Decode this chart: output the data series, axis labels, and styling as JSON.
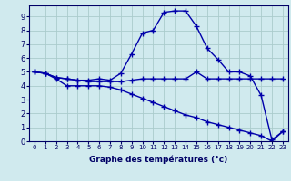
{
  "xlabel": "Graphe des températures (°c)",
  "bg_color": "#d0eaee",
  "grid_color": "#aacccc",
  "line_color": "#0000aa",
  "line_width": 1.0,
  "marker": "+",
  "marker_size": 4,
  "marker_ew": 1.0,
  "xlim": [
    -0.5,
    23.5
  ],
  "ylim": [
    0,
    9.8
  ],
  "xticks": [
    0,
    1,
    2,
    3,
    4,
    5,
    6,
    7,
    8,
    9,
    10,
    11,
    12,
    13,
    14,
    15,
    16,
    17,
    18,
    19,
    20,
    21,
    22,
    23
  ],
  "yticks": [
    0,
    1,
    2,
    3,
    4,
    5,
    6,
    7,
    8,
    9
  ],
  "curve1_x": [
    0,
    1,
    2,
    3,
    4,
    5,
    6,
    7,
    8,
    9,
    10,
    11,
    12,
    13,
    14,
    15,
    16,
    17,
    18,
    19,
    20,
    21,
    22,
    23
  ],
  "curve1_y": [
    5.0,
    4.9,
    4.6,
    4.5,
    4.4,
    4.4,
    4.5,
    4.4,
    4.9,
    6.3,
    7.8,
    8.0,
    9.3,
    9.4,
    9.4,
    8.3,
    6.7,
    5.9,
    5.0,
    5.0,
    4.7,
    3.3,
    0.1,
    0.7
  ],
  "curve2_x": [
    0,
    1,
    2,
    3,
    4,
    5,
    6,
    7,
    8,
    9,
    10,
    11,
    12,
    13,
    14,
    15,
    16,
    17,
    18,
    19,
    20,
    21,
    22,
    23
  ],
  "curve2_y": [
    5.0,
    4.9,
    4.6,
    4.5,
    4.4,
    4.3,
    4.3,
    4.3,
    4.3,
    4.4,
    4.5,
    4.5,
    4.5,
    4.5,
    4.5,
    5.0,
    4.5,
    4.5,
    4.5,
    4.5,
    4.5,
    4.5,
    4.5,
    4.5
  ],
  "curve3_x": [
    0,
    1,
    2,
    3,
    4,
    5,
    6,
    7,
    8,
    9,
    10,
    11,
    12,
    13,
    14,
    15,
    16,
    17,
    18,
    19,
    20,
    21,
    22,
    23
  ],
  "curve3_y": [
    5.0,
    4.9,
    4.5,
    4.0,
    4.0,
    4.0,
    4.0,
    3.9,
    3.7,
    3.4,
    3.1,
    2.8,
    2.5,
    2.2,
    1.9,
    1.7,
    1.4,
    1.2,
    1.0,
    0.8,
    0.6,
    0.4,
    0.0,
    0.7
  ],
  "xlabel_fontsize": 6.5,
  "xtick_fontsize": 5.0,
  "ytick_fontsize": 6.0
}
